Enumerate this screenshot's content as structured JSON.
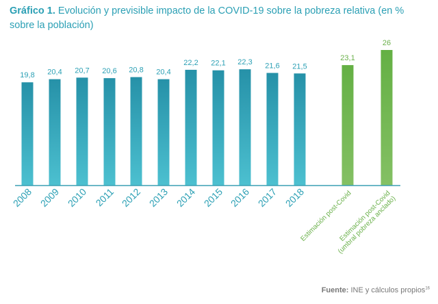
{
  "header": {
    "title_label": "Gráfico 1.",
    "title_text": "Evolución y previsible impacto de la COVID-19 sobre la pobreza relativa (en % sobre la población)"
  },
  "source": {
    "label": "Fuente:",
    "text": "INE y cálculos propios",
    "footnote": "16"
  },
  "colors": {
    "teal_top": "#2691a8",
    "teal_bottom": "#4cc0d0",
    "green_top": "#64b044",
    "green_bottom": "#84c064",
    "teal_text": "#2a9fb4",
    "green_text": "#6ab04a",
    "axis": "#3a9fb4"
  },
  "chart_data": {
    "type": "bar",
    "categories": [
      "2008",
      "2009",
      "2010",
      "2011",
      "2012",
      "2013",
      "2014",
      "2015",
      "2016",
      "2017",
      "2018",
      "Estimación post-Covid",
      "Estimación post-Covid (umbral pobreza anclado)"
    ],
    "category_lines": [
      [
        "2008"
      ],
      [
        "2009"
      ],
      [
        "2010"
      ],
      [
        "2011"
      ],
      [
        "2012"
      ],
      [
        "2013"
      ],
      [
        "2014"
      ],
      [
        "2015"
      ],
      [
        "2016"
      ],
      [
        "2017"
      ],
      [
        "2018"
      ],
      [
        "Estimación post-Covid"
      ],
      [
        "Estimación post-Covid",
        "(umbral pobreza anclado)"
      ]
    ],
    "values": [
      19.8,
      20.4,
      20.7,
      20.6,
      20.8,
      20.4,
      22.2,
      22.1,
      22.3,
      21.6,
      21.5,
      23.1,
      26
    ],
    "value_labels": [
      "19,8",
      "20,4",
      "20,7",
      "20,6",
      "20,8",
      "20,4",
      "22,2",
      "22,1",
      "22,3",
      "21,6",
      "21,5",
      "23,1",
      "26"
    ],
    "series_kind": [
      "historic",
      "historic",
      "historic",
      "historic",
      "historic",
      "historic",
      "historic",
      "historic",
      "historic",
      "historic",
      "historic",
      "estimate",
      "estimate"
    ],
    "ylim": [
      0,
      26
    ],
    "grid": false,
    "legend": "none"
  }
}
